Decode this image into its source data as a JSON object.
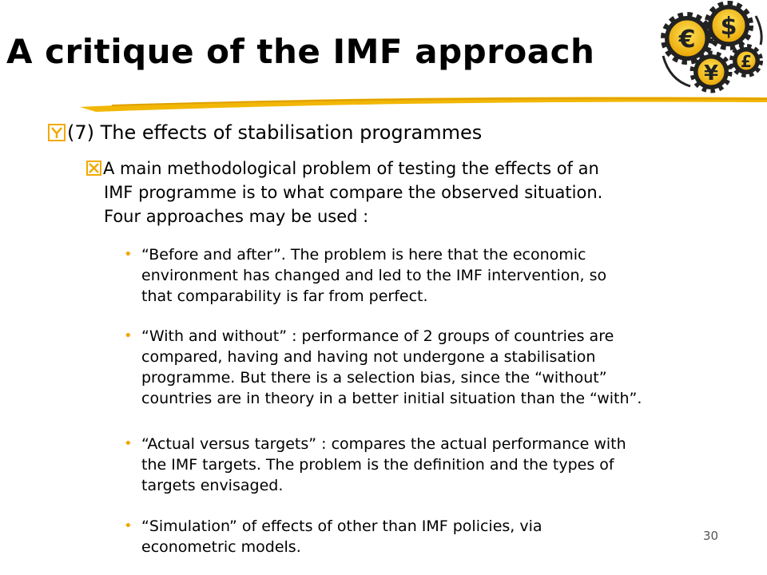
{
  "slide": {
    "title": "A critique of the IMF approach",
    "level1": "(7) The effects of stabilisation programmes",
    "level2": {
      "first_line": "A main methodological problem of testing the effects of an",
      "line2": "IMF programme is to what compare the observed situation.",
      "line3": "Four approaches may be used :"
    },
    "items": [
      {
        "lines": [
          "“Before and after”. The problem is here that the economic",
          "environment has changed and led to the IMF intervention, so",
          "that comparability is far from perfect."
        ]
      },
      {
        "lines": [
          "“With and without” : performance of 2 groups of countries are",
          "compared, having and having not undergone a stabilisation",
          "programme. But there is a selection bias, since the “without”",
          "countries are in theory in a better initial situation than the “with”."
        ]
      },
      {
        "lines": [
          "“Actual versus targets” : compares the actual performance with",
          "the IMF targets. The problem is the definition and the types of",
          "targets envisaged."
        ]
      },
      {
        "lines": [
          "“Simulation” of effects of other than IMF policies, via",
          "econometric models."
        ]
      }
    ],
    "page_number": "30"
  },
  "logo": {
    "icon": "currency-gears-logo",
    "symbols": [
      "€",
      "$",
      "¥",
      "£"
    ]
  },
  "colors": {
    "accent": "#f2b705",
    "gear_dark": "#222222",
    "bullet": "#f2a900"
  }
}
